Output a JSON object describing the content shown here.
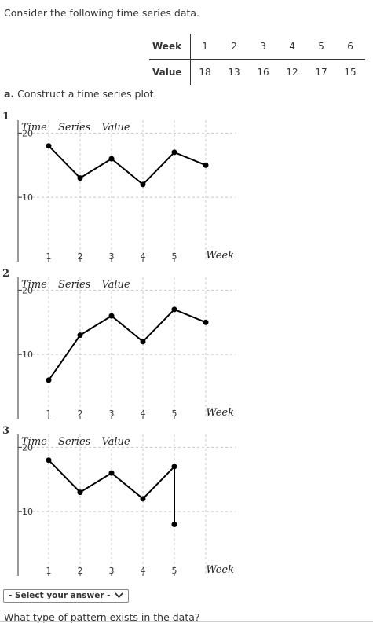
{
  "intro_text": "Consider the following time series data.",
  "table": {
    "row1_label": "Week",
    "row2_label": "Value",
    "weeks": [
      "1",
      "2",
      "3",
      "4",
      "5",
      "6"
    ],
    "values": [
      "18",
      "13",
      "16",
      "12",
      "17",
      "15"
    ]
  },
  "part_a": {
    "prefix": "a.",
    "text": "Construct a time series plot."
  },
  "options": [
    {
      "number": "1"
    },
    {
      "number": "2"
    },
    {
      "number": "3"
    }
  ],
  "chart_data": [
    {
      "type": "line",
      "title": "Time Series Value",
      "xlabel": "Week",
      "x": [
        1,
        2,
        3,
        4,
        5,
        6
      ],
      "y": [
        18,
        13,
        16,
        12,
        17,
        15
      ],
      "x_tick_labels": [
        "1",
        "2",
        "3",
        "4",
        "5"
      ],
      "y_tick_labels": [
        "20",
        "10"
      ],
      "xlim": [
        0,
        7
      ],
      "ylim": [
        0,
        22
      ],
      "grid": true
    },
    {
      "type": "line",
      "title": "Time Series Value",
      "xlabel": "Week",
      "x": [
        1,
        2,
        3,
        4,
        5,
        6
      ],
      "y": [
        6,
        13,
        16,
        12,
        17,
        15
      ],
      "x_tick_labels": [
        "1",
        "2",
        "3",
        "4",
        "5"
      ],
      "y_tick_labels": [
        "20",
        "10"
      ],
      "xlim": [
        0,
        7
      ],
      "ylim": [
        0,
        22
      ],
      "grid": true
    },
    {
      "type": "line",
      "title": "Time Series Value",
      "xlabel": "Week",
      "x": [
        1,
        2,
        3,
        4,
        5,
        5
      ],
      "y": [
        18,
        13,
        16,
        12,
        17,
        8
      ],
      "x_tick_labels": [
        "1",
        "2",
        "3",
        "4",
        "5"
      ],
      "y_tick_labels": [
        "20",
        "10"
      ],
      "xlim": [
        0,
        7
      ],
      "ylim": [
        0,
        22
      ],
      "grid": true
    }
  ],
  "select": {
    "label": "- Select your answer -",
    "icon": "chevron-down-icon"
  },
  "question_text": "What type of pattern exists in the data?"
}
